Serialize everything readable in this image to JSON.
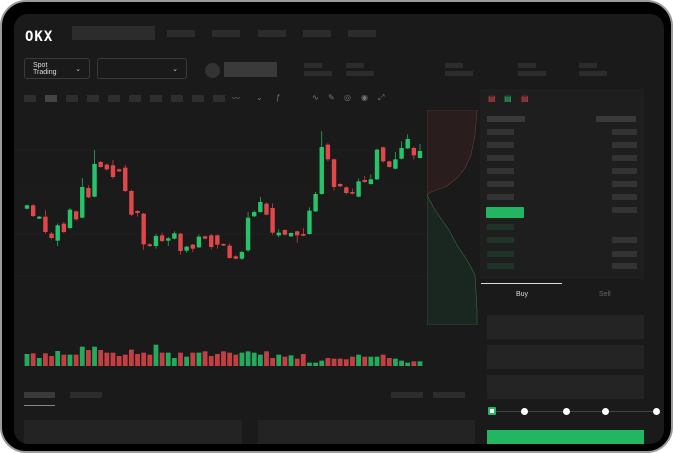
{
  "header": {
    "logo": "OKX"
  },
  "toolbar": {
    "market_dropdown": "Spot Trading",
    "market_chevron": "chevron-down-icon",
    "pair_chevron": "chevron-down-icon"
  },
  "trade": {
    "buy_tab": "Buy",
    "sell_tab": "Sell",
    "active_tab": "Buy",
    "leverage_slider_value": 0
  },
  "colors": {
    "up": "#26c46a",
    "down": "#e0474b",
    "background": "#1a1a1a",
    "accent": "#22b663"
  },
  "chart_data": {
    "type": "candlestick",
    "candles": [
      [
        240,
        252,
        238,
        250
      ],
      [
        250,
        254,
        215,
        218
      ],
      [
        210,
        218,
        209,
        216
      ],
      [
        216,
        235,
        165,
        170
      ],
      [
        165,
        170,
        148,
        152
      ],
      [
        144,
        195,
        128,
        190
      ],
      [
        195,
        200,
        167,
        170
      ],
      [
        182,
        242,
        178,
        237
      ],
      [
        232,
        235,
        204,
        208
      ],
      [
        213,
        332,
        211,
        305
      ],
      [
        302,
        310,
        272,
        274
      ],
      [
        276,
        416,
        274,
        374
      ],
      [
        380,
        383,
        363,
        365
      ],
      [
        372,
        376,
        354,
        358
      ],
      [
        370,
        386,
        330,
        335
      ],
      [
        358,
        360,
        350,
        352
      ],
      [
        363,
        372,
        290,
        293
      ],
      [
        293,
        297,
        218,
        222
      ],
      [
        233,
        236,
        216,
        227
      ],
      [
        225,
        227,
        117,
        133
      ],
      [
        133,
        137,
        125,
        128
      ],
      [
        128,
        164,
        120,
        158
      ],
      [
        160,
        168,
        140,
        143
      ],
      [
        144,
        155,
        128,
        151
      ],
      [
        150,
        172,
        148,
        166
      ],
      [
        165,
        167,
        102,
        113
      ],
      [
        114,
        128,
        108,
        126
      ],
      [
        132,
        134,
        110,
        120
      ],
      [
        124,
        162,
        122,
        156
      ],
      [
        157,
        159,
        148,
        150
      ],
      [
        160,
        164,
        118,
        125
      ],
      [
        160,
        162,
        120,
        132
      ],
      [
        134,
        136,
        128,
        130
      ],
      [
        129,
        136,
        90,
        92
      ],
      [
        97,
        100,
        88,
        90
      ],
      [
        90,
        114,
        86,
        110
      ],
      [
        115,
        230,
        110,
        213
      ],
      [
        217,
        235,
        215,
        230
      ],
      [
        230,
        275,
        228,
        260
      ],
      [
        255,
        258,
        220,
        222
      ],
      [
        242,
        256,
        162,
        168
      ],
      [
        160,
        178,
        154,
        168
      ],
      [
        176,
        178,
        160,
        162
      ],
      [
        157,
        169,
        155,
        167
      ],
      [
        172,
        174,
        138,
        160
      ],
      [
        164,
        182,
        157,
        159
      ],
      [
        164,
        244,
        162,
        234
      ],
      [
        232,
        290,
        230,
        284
      ],
      [
        284,
        473,
        282,
        425
      ],
      [
        432,
        436,
        382,
        388
      ],
      [
        388,
        390,
        295,
        305
      ],
      [
        314,
        316,
        304,
        307
      ],
      [
        304,
        306,
        283,
        287
      ],
      [
        290,
        300,
        283,
        285
      ],
      [
        276,
        330,
        274,
        322
      ],
      [
        326,
        338,
        318,
        320
      ],
      [
        314,
        343,
        312,
        328
      ],
      [
        328,
        420,
        326,
        417
      ],
      [
        424,
        426,
        378,
        382
      ],
      [
        382,
        384,
        363,
        365
      ],
      [
        360,
        410,
        358,
        388
      ],
      [
        390,
        442,
        388,
        422
      ],
      [
        421,
        463,
        419,
        449
      ],
      [
        422,
        426,
        388,
        400
      ],
      [
        392,
        434,
        390,
        413
      ]
    ],
    "volume": [
      36,
      38,
      24,
      38,
      30,
      45,
      34,
      34,
      34,
      58,
      48,
      58,
      48,
      40,
      40,
      30,
      34,
      49,
      36,
      40,
      34,
      64,
      40,
      40,
      24,
      40,
      28,
      40,
      40,
      44,
      30,
      36,
      44,
      40,
      34,
      40,
      44,
      40,
      34,
      44,
      24,
      34,
      28,
      32,
      22,
      36,
      10,
      10,
      16,
      24,
      22,
      22,
      20,
      28,
      34,
      28,
      28,
      28,
      34,
      24,
      22,
      16,
      10,
      14,
      14
    ],
    "grid": true
  }
}
